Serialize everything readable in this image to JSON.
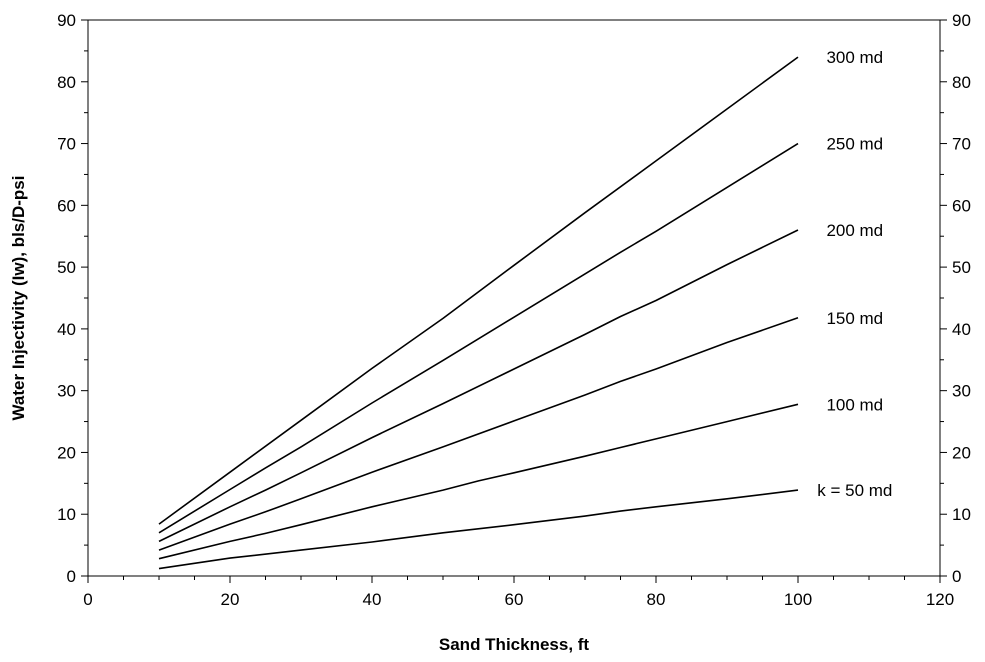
{
  "chart_data": {
    "type": "line",
    "xlabel": "Sand Thickness, ft",
    "ylabel": "Water Injectivity (Iw), bls/D-psi",
    "xlim": [
      0,
      120
    ],
    "ylim": [
      0,
      90
    ],
    "x_ticks": [
      0,
      20,
      40,
      60,
      80,
      100,
      120
    ],
    "y_ticks": [
      0,
      10,
      20,
      30,
      40,
      50,
      60,
      70,
      80,
      90
    ],
    "secondary_y_axis": true,
    "grid": false,
    "legend": "none",
    "series": [
      {
        "name": "k = 50 md",
        "x": [
          10,
          20,
          30,
          40,
          50,
          60,
          70,
          75,
          80,
          90,
          100
        ],
        "y": [
          1.2,
          2.9,
          4.2,
          5.5,
          7.0,
          8.3,
          9.7,
          10.5,
          11.2,
          12.5,
          13.9
        ]
      },
      {
        "name": "100 md",
        "x": [
          10,
          20,
          25,
          30,
          40,
          50,
          55,
          60,
          70,
          75,
          80,
          90,
          100
        ],
        "y": [
          2.8,
          5.6,
          6.9,
          8.3,
          11.2,
          13.9,
          15.4,
          16.7,
          19.4,
          20.8,
          22.2,
          25.0,
          27.8
        ]
      },
      {
        "name": "150 md",
        "x": [
          10,
          20,
          25,
          30,
          40,
          50,
          60,
          70,
          75,
          80,
          90,
          100
        ],
        "y": [
          4.2,
          8.4,
          10.4,
          12.5,
          16.8,
          20.9,
          25.1,
          29.3,
          31.5,
          33.5,
          37.8,
          41.8
        ]
      },
      {
        "name": "200 md",
        "x": [
          10,
          20,
          25,
          30,
          40,
          50,
          60,
          70,
          75,
          80,
          90,
          100
        ],
        "y": [
          5.6,
          11.2,
          13.9,
          16.7,
          22.4,
          27.9,
          33.5,
          39.1,
          42.0,
          44.6,
          50.4,
          56.0
        ]
      },
      {
        "name": "250 md",
        "x": [
          10,
          20,
          25,
          30,
          40,
          50,
          60,
          70,
          75,
          80,
          90,
          100
        ],
        "y": [
          7.0,
          14.0,
          17.5,
          20.9,
          28.0,
          34.9,
          41.9,
          48.9,
          52.4,
          55.8,
          62.9,
          70.0
        ]
      },
      {
        "name": "300 md",
        "x": [
          10,
          20,
          30,
          40,
          50,
          60,
          70,
          80,
          90,
          100
        ],
        "y": [
          8.4,
          16.8,
          25.2,
          33.6,
          41.7,
          50.3,
          58.8,
          67.2,
          75.6,
          84.0
        ]
      }
    ]
  }
}
